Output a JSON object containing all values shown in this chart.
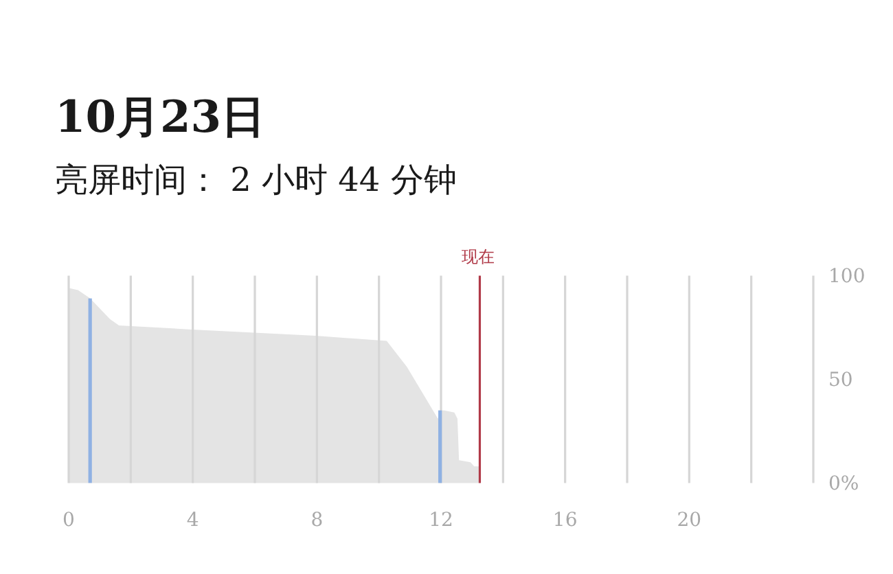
{
  "chart_data": {
    "type": "area",
    "title": "10月23日",
    "subtitle": "亮屏时间： 2 小时 44 分钟",
    "x": [
      0,
      0.3,
      0.69,
      1.33,
      1.62,
      3.98,
      7.96,
      10.25,
      10.9,
      11.9,
      11.97,
      12.1,
      12.43,
      12.53,
      12.58,
      12.95,
      13.07,
      13.25
    ],
    "series": [
      {
        "color": "#e4e4e4",
        "values": [
          94,
          93,
          89,
          79,
          76,
          74,
          71,
          68.5,
          56,
          31,
          35,
          35,
          34,
          31,
          11,
          10,
          8,
          8
        ]
      },
      {
        "type": "bar",
        "color": "#8fb1e3",
        "x": [
          0.69,
          11.97
        ],
        "values": [
          89,
          35
        ]
      }
    ],
    "xlim": [
      0,
      24
    ],
    "ylim": [
      0,
      100
    ],
    "xticks": [
      0,
      {
        "value": 2,
        "label": null
      },
      4,
      {
        "value": 6,
        "label": null
      },
      8,
      {
        "value": 10,
        "label": null
      },
      12,
      {
        "value": 14,
        "label": null
      },
      16,
      {
        "value": 18,
        "label": null
      },
      20,
      {
        "value": 22,
        "label": null
      },
      {
        "value": 24,
        "label": null
      }
    ],
    "yticks": [
      {
        "value": 0,
        "label": "0%"
      },
      50,
      100
    ],
    "grid": "x",
    "ref_lines": [
      {
        "axis": "x",
        "value": 13.25,
        "label": "现在",
        "color": "#b03a48"
      }
    ]
  }
}
